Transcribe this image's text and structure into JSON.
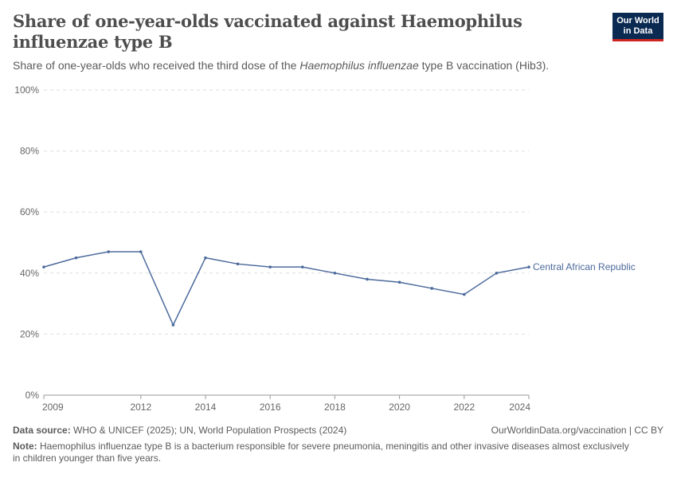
{
  "title": "Share of one-year-olds vaccinated against Haemophilus influenzae type B",
  "subtitle_parts": [
    "Share of one-year-olds who received the third dose of the ",
    "Haemophilus influenzae",
    " type B vaccination (Hib3)."
  ],
  "logo": {
    "line1": "Our World",
    "line2": "in Data"
  },
  "footer": {
    "source_label": "Data source:",
    "source_text": " WHO & UNICEF (2025); UN, World Population Prospects (2024)",
    "link": "OurWorldinData.org/vaccination | CC BY",
    "note_label": "Note:",
    "note_text": " Haemophilus influenzae type B is a bacterium responsible for severe pneumonia, meningitis and other invasive diseases almost exclusively in children younger than five years."
  },
  "chart_data": {
    "type": "line",
    "x": [
      2009,
      2010,
      2011,
      2012,
      2013,
      2014,
      2015,
      2016,
      2017,
      2018,
      2019,
      2020,
      2021,
      2022,
      2023,
      2024
    ],
    "series": [
      {
        "name": "Central African Republic",
        "color": "#4c6a9c",
        "values": [
          42,
          45,
          47,
          47,
          23,
          45,
          43,
          42,
          42,
          40,
          38,
          37,
          35,
          33,
          40,
          42
        ]
      }
    ],
    "xlim": [
      2009,
      2024
    ],
    "ylim": [
      0,
      100
    ],
    "yticks": [
      "0%",
      "20%",
      "40%",
      "60%",
      "80%",
      "100%"
    ],
    "ytick_values": [
      0,
      20,
      40,
      60,
      80,
      100
    ],
    "xticks": [
      "2009",
      "2012",
      "2014",
      "2016",
      "2018",
      "2020",
      "2022",
      "2024"
    ],
    "xtick_values": [
      2009,
      2012,
      2014,
      2016,
      2018,
      2020,
      2022,
      2024
    ],
    "grid": true,
    "legend": "inline-right"
  }
}
